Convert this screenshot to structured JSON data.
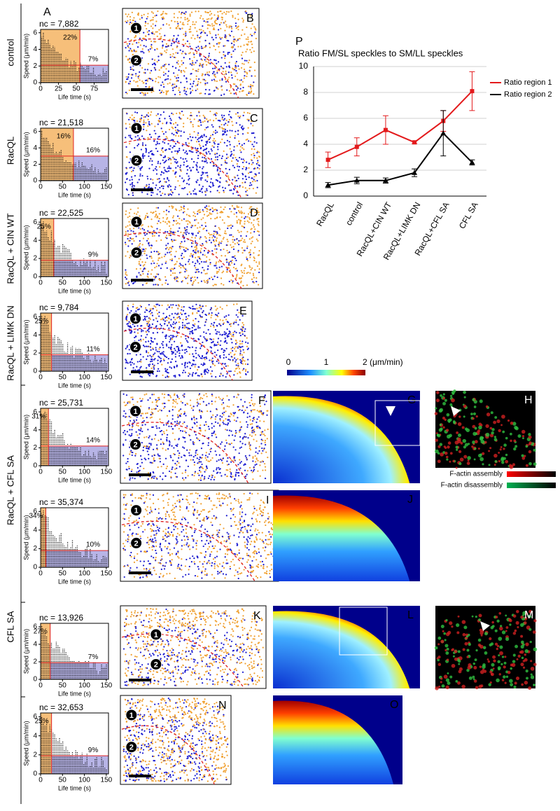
{
  "row_labels": [
    "control",
    "RacQL",
    "RacQL + CIN WT",
    "RacQL + LIMK DN",
    "RacQL + CFL SA",
    "CFL SA"
  ],
  "hist_axes": {
    "ylabel": "Speed (μm/min)",
    "xlabel": "Life time (s)"
  },
  "histograms": [
    {
      "letter": "A",
      "nc": "nc = 7,882",
      "pct_fast": "22%",
      "pct_slow": "7%",
      "xlim": [
        0,
        95
      ],
      "xticks": [
        0,
        25,
        50,
        75
      ],
      "ylim": [
        0,
        6.4
      ],
      "yticks": [
        0,
        2,
        4,
        6
      ],
      "lifetime_cut": 55,
      "speed_cut": 2.1
    },
    {
      "letter": "",
      "nc": "nc = 21,518",
      "pct_fast": "16%",
      "pct_slow": "16%",
      "xlim": [
        0,
        155
      ],
      "xticks": [
        0,
        50,
        100,
        150
      ],
      "ylim": [
        0,
        6.4
      ],
      "yticks": [
        0,
        2,
        4,
        6
      ],
      "lifetime_cut": 75,
      "speed_cut": 3
    },
    {
      "letter": "",
      "nc": "nc = 22,525",
      "pct_fast": "25%",
      "pct_slow": "9%",
      "xlim": [
        0,
        155
      ],
      "xticks": [
        0,
        50,
        100,
        150
      ],
      "ylim": [
        0,
        6.4
      ],
      "yticks": [
        0,
        2,
        4,
        6
      ],
      "lifetime_cut": 30,
      "speed_cut": 1.8
    },
    {
      "letter": "",
      "nc": "nc = 9,784",
      "pct_fast": "25%",
      "pct_slow": "11%",
      "xlim": [
        0,
        155
      ],
      "xticks": [
        0,
        50,
        100,
        150
      ],
      "ylim": [
        0,
        6.4
      ],
      "yticks": [
        0,
        2,
        4,
        6
      ],
      "lifetime_cut": 25,
      "speed_cut": 1.8
    },
    {
      "letter": "",
      "nc": "nc = 25,731",
      "pct_fast": "31%",
      "pct_slow": "14%",
      "xlim": [
        0,
        155
      ],
      "xticks": [
        0,
        50,
        100,
        150
      ],
      "ylim": [
        0,
        6.4
      ],
      "yticks": [
        0,
        2,
        4,
        6
      ],
      "lifetime_cut": 18,
      "speed_cut": 2.2
    },
    {
      "letter": "",
      "nc": "nc = 35,374",
      "pct_fast": "34%",
      "pct_slow": "10%",
      "xlim": [
        0,
        155
      ],
      "xticks": [
        0,
        50,
        100,
        150
      ],
      "ylim": [
        0,
        6.4
      ],
      "yticks": [
        0,
        2,
        4,
        6
      ],
      "lifetime_cut": 12,
      "speed_cut": 1.8
    },
    {
      "letter": "",
      "nc": "nc = 13,926",
      "pct_fast": "27%",
      "pct_slow": "7%",
      "xlim": [
        0,
        155
      ],
      "xticks": [
        0,
        50,
        100,
        150
      ],
      "ylim": [
        0,
        6.4
      ],
      "yticks": [
        0,
        2,
        4,
        6
      ],
      "lifetime_cut": 22,
      "speed_cut": 1.9
    },
    {
      "letter": "",
      "nc": "nc = 32,653",
      "pct_fast": "25%",
      "pct_slow": "9%",
      "xlim": [
        0,
        155
      ],
      "xticks": [
        0,
        50,
        100,
        150
      ],
      "ylim": [
        0,
        6.4
      ],
      "yticks": [
        0,
        2,
        4,
        6
      ],
      "lifetime_cut": 25,
      "speed_cut": 1.9
    }
  ],
  "maps": [
    {
      "letter": "B",
      "region_1": "1",
      "region_2": "2"
    },
    {
      "letter": "C",
      "region_1": "1",
      "region_2": "2"
    },
    {
      "letter": "D",
      "region_1": "1",
      "region_2": "2"
    },
    {
      "letter": "E",
      "region_1": "1",
      "region_2": "2"
    },
    {
      "letter": "F",
      "region_1": "1",
      "region_2": "2"
    },
    {
      "letter": "I",
      "region_1": "1",
      "region_2": "2"
    },
    {
      "letter": "K",
      "region_1": "1",
      "region_2": "2"
    },
    {
      "letter": "N",
      "region_1": "1",
      "region_2": "2"
    }
  ],
  "heatmaps": [
    "G",
    "J",
    "L",
    "O"
  ],
  "fluorescence": [
    "H",
    "M"
  ],
  "colorbar": {
    "min": "0",
    "mid": "1",
    "max": "2 (μm/min)"
  },
  "fluor_legend": {
    "assembly": "F-actin assembly",
    "disassembly": "F-actin disassembly"
  },
  "chart_data": {
    "type": "line",
    "panel": "P",
    "title": "Ratio FM/SL speckles to SM/LL speckles",
    "categories": [
      "RacQL",
      "control",
      "RacQL+CIN WT",
      "RacQL+LIMK DN",
      "RacQL+CFL SA",
      "CFL SA"
    ],
    "series": [
      {
        "name": "Ratio region 1",
        "color": "#e31a1c",
        "values": [
          2.8,
          3.8,
          5.1,
          4.15,
          5.8,
          8.1
        ],
        "errors": [
          0.6,
          0.7,
          1.1,
          0.1,
          0.8,
          1.5
        ]
      },
      {
        "name": "Ratio region 2",
        "color": "#000000",
        "values": [
          0.85,
          1.2,
          1.2,
          1.8,
          4.85,
          2.6
        ],
        "errors": [
          0.2,
          0.25,
          0.2,
          0.3,
          1.75,
          0.2
        ]
      }
    ],
    "ylim": [
      0,
      10
    ],
    "yticks": [
      0,
      2,
      4,
      6,
      8,
      10
    ],
    "grid": true
  }
}
